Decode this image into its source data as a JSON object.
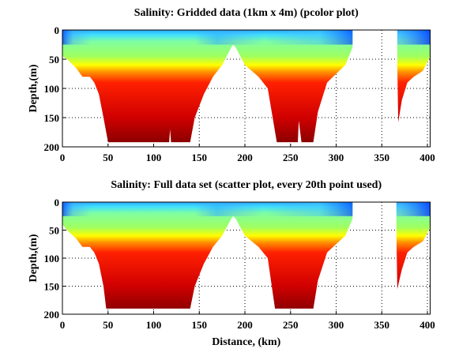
{
  "chart_data": [
    {
      "type": "heatmap",
      "title": "Salinity: Gridded data (1km x 4m) (pcolor plot)",
      "xlabel": "",
      "ylabel": "Depth,(m)",
      "xlim": [
        0,
        403
      ],
      "ylim": [
        0,
        200
      ],
      "y_reversed": true,
      "xticks": [
        "0",
        "50",
        "100",
        "150",
        "200",
        "250",
        "300",
        "350",
        "400"
      ],
      "yticks": [
        "0",
        "50",
        "100",
        "150",
        "200"
      ],
      "grid": true,
      "colormap": "jet",
      "section_bottom_depth": {
        "segments": [
          {
            "distance": [
              0,
              5,
              15,
              22,
              30,
              35,
              40,
              45,
              50,
              117,
              118,
              119,
              140,
              145,
              155,
              165,
              175,
              185,
              187,
              190,
              200,
              215,
              225,
              235,
              258,
              259,
              262,
              275,
              280,
              290,
              300,
              310,
              318
            ],
            "depth": [
              45,
              50,
              65,
              80,
              80,
              90,
              110,
              150,
              192,
              192,
              170,
              192,
              192,
              150,
              110,
              80,
              60,
              30,
              25,
              30,
              60,
              80,
              100,
              192,
              192,
              155,
              192,
              192,
              140,
              90,
              75,
              60,
              30
            ]
          },
          {
            "distance": [
              367,
              368,
              372,
              378,
              385,
              395,
              403
            ],
            "depth": [
              60,
              158,
              120,
              90,
              80,
              70,
              45
            ]
          }
        ]
      }
    },
    {
      "type": "scatter",
      "title": "Salinity: Full data set (scatter plot, every 20th point used)",
      "xlabel": "Distance, (km)",
      "ylabel": "Depth,(m)",
      "xlim": [
        0,
        403
      ],
      "ylim": [
        0,
        200
      ],
      "y_reversed": true,
      "xticks": [
        "0",
        "50",
        "100",
        "150",
        "200",
        "250",
        "300",
        "350",
        "400"
      ],
      "yticks": [
        "0",
        "50",
        "100",
        "150",
        "200"
      ],
      "grid": true,
      "colormap": "jet",
      "section_bottom_depth": {
        "segments": [
          {
            "distance": [
              0,
              5,
              15,
              22,
              30,
              35,
              40,
              45,
              48,
              140,
              145,
              155,
              165,
              175,
              185,
              187,
              190,
              200,
              215,
              225,
              233,
              275,
              280,
              290,
              300,
              310,
              318
            ],
            "depth": [
              40,
              50,
              65,
              80,
              80,
              90,
              110,
              150,
              190,
              190,
              150,
              110,
              80,
              60,
              30,
              25,
              30,
              60,
              80,
              100,
              190,
              190,
              140,
              90,
              75,
              60,
              30
            ]
          },
          {
            "distance": [
              366,
              367,
              372,
              378,
              385,
              395,
              403
            ],
            "depth": [
              60,
              155,
              120,
              90,
              80,
              70,
              45
            ]
          }
        ]
      }
    }
  ]
}
